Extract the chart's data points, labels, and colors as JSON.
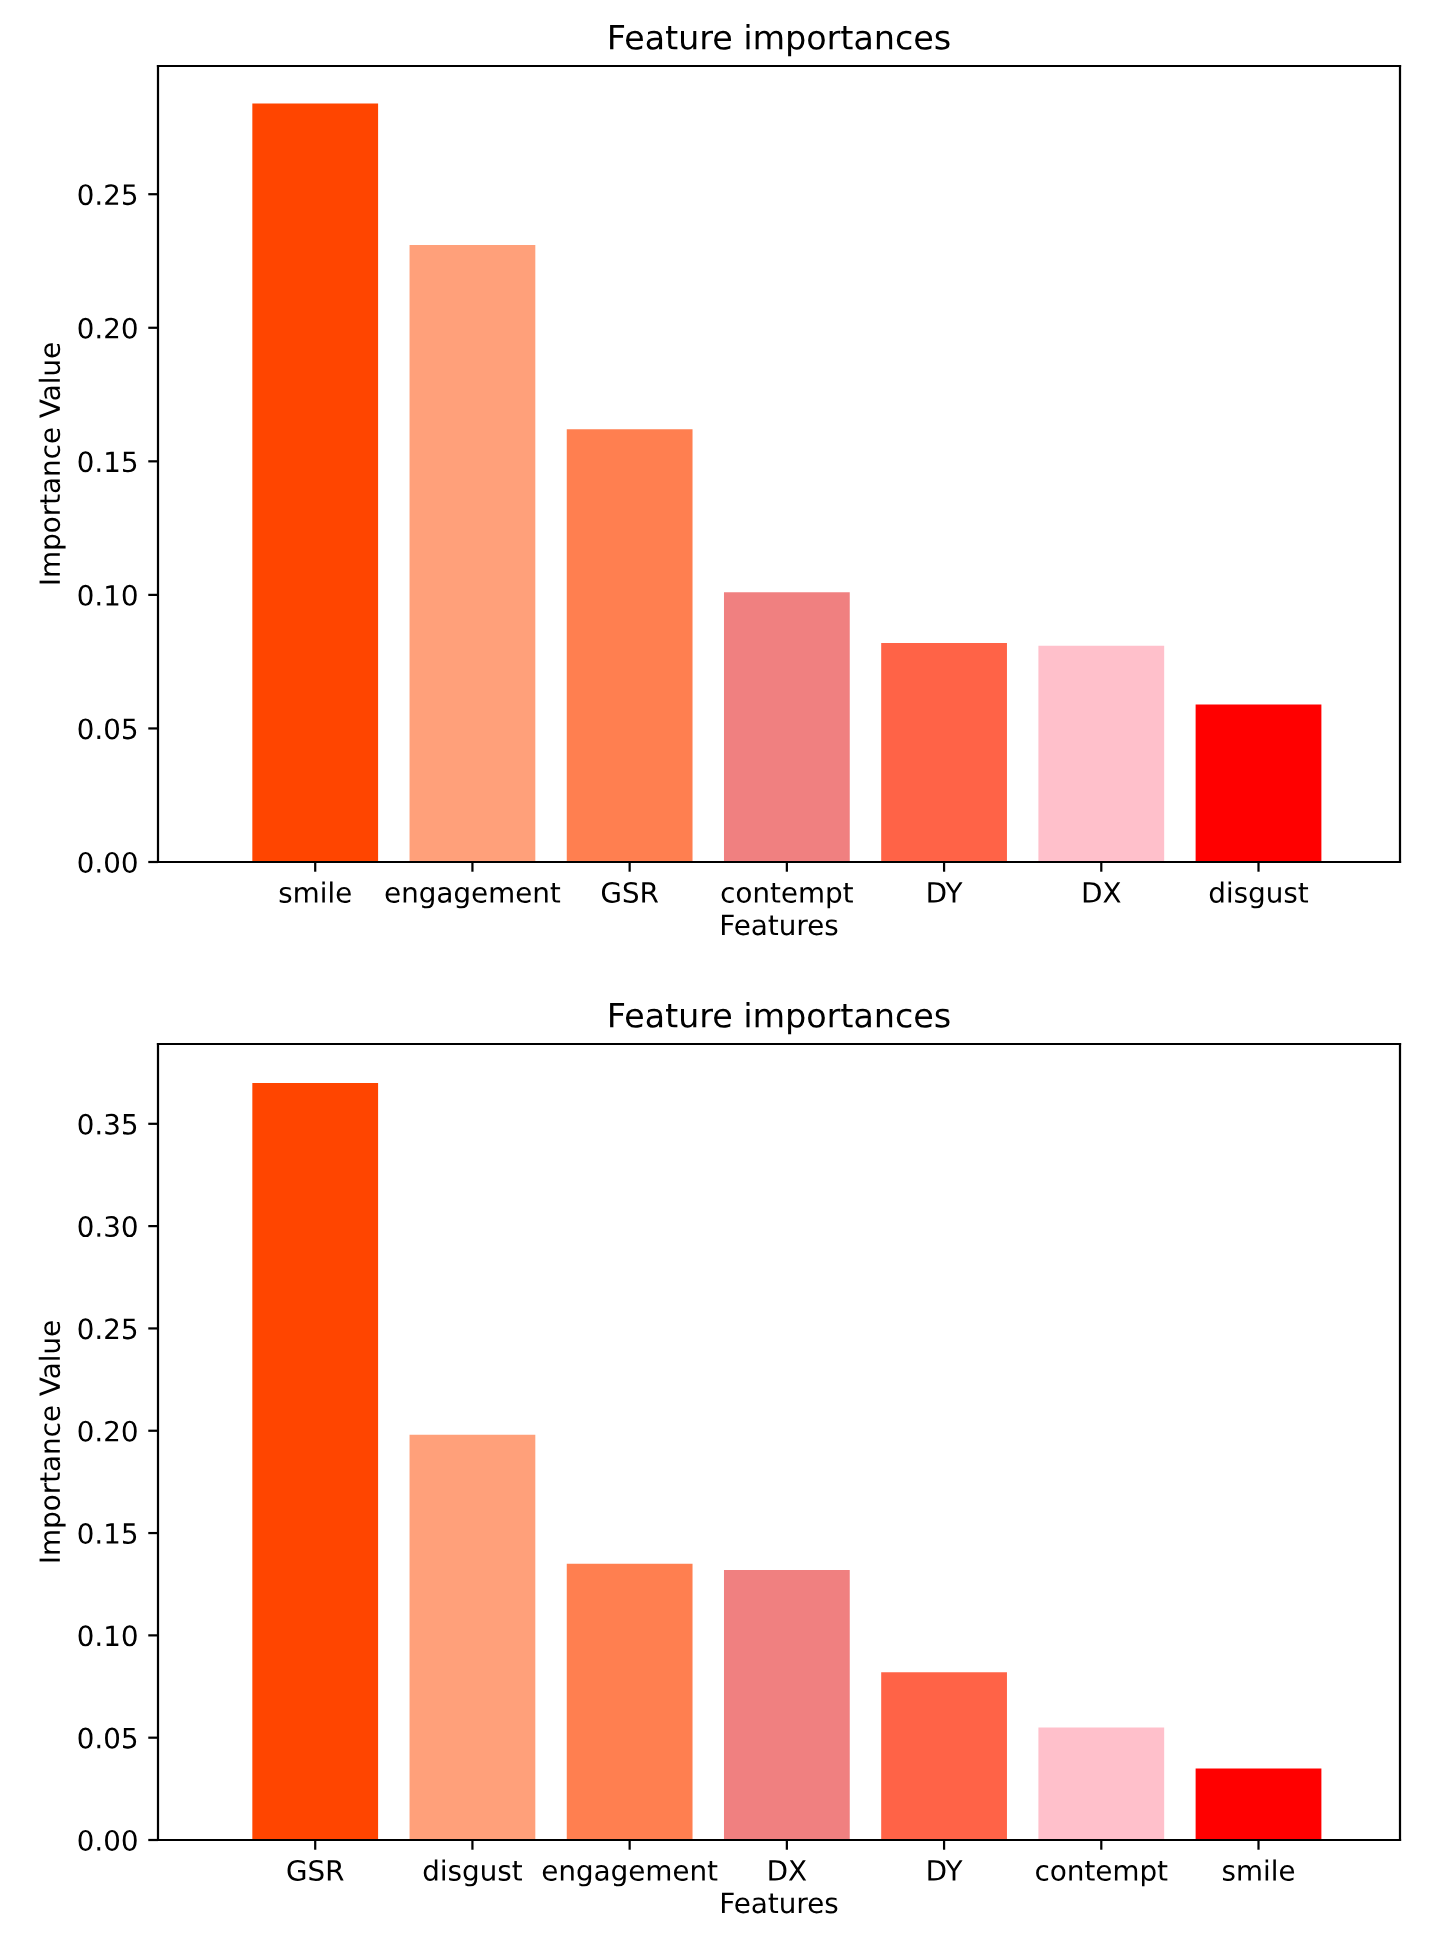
{
  "chart_data": [
    {
      "type": "bar",
      "title": "Feature importances",
      "xlabel": "Features",
      "ylabel": "Importance Value",
      "categories": [
        "smile",
        "engagement",
        "GSR",
        "contempt",
        "DY",
        "DX",
        "disgust"
      ],
      "values": [
        0.284,
        0.231,
        0.162,
        0.101,
        0.082,
        0.081,
        0.059
      ],
      "colors": [
        "#ff4500",
        "#ffa07a",
        "#ff7f50",
        "#f08080",
        "#ff6347",
        "#ffc0cb",
        "#ff0000"
      ],
      "ylim": [
        0,
        0.298
      ],
      "yticks": [
        {
          "value": 0,
          "label": "0.00"
        },
        {
          "value": 0.05,
          "label": "0.05"
        },
        {
          "value": 0.1,
          "label": "0.10"
        },
        {
          "value": 0.15,
          "label": "0.15"
        },
        {
          "value": 0.2,
          "label": "0.20"
        },
        {
          "value": 0.25,
          "label": "0.25"
        }
      ],
      "grid": false,
      "legend": false
    },
    {
      "type": "bar",
      "title": "Feature importances",
      "xlabel": "Features",
      "ylabel": "Importance Value",
      "categories": [
        "GSR",
        "disgust",
        "engagement",
        "DX",
        "DY",
        "contempt",
        "smile"
      ],
      "values": [
        0.37,
        0.198,
        0.135,
        0.132,
        0.082,
        0.055,
        0.035
      ],
      "colors": [
        "#ff4500",
        "#ffa07a",
        "#ff7f50",
        "#f08080",
        "#ff6347",
        "#ffc0cb",
        "#ff0000"
      ],
      "ylim": [
        0,
        0.389
      ],
      "yticks": [
        {
          "value": 0,
          "label": "0.00"
        },
        {
          "value": 0.05,
          "label": "0.05"
        },
        {
          "value": 0.1,
          "label": "0.10"
        },
        {
          "value": 0.15,
          "label": "0.15"
        },
        {
          "value": 0.2,
          "label": "0.20"
        },
        {
          "value": 0.25,
          "label": "0.25"
        },
        {
          "value": 0.3,
          "label": "0.30"
        },
        {
          "value": 0.35,
          "label": "0.35"
        }
      ],
      "grid": false,
      "legend": false
    }
  ]
}
